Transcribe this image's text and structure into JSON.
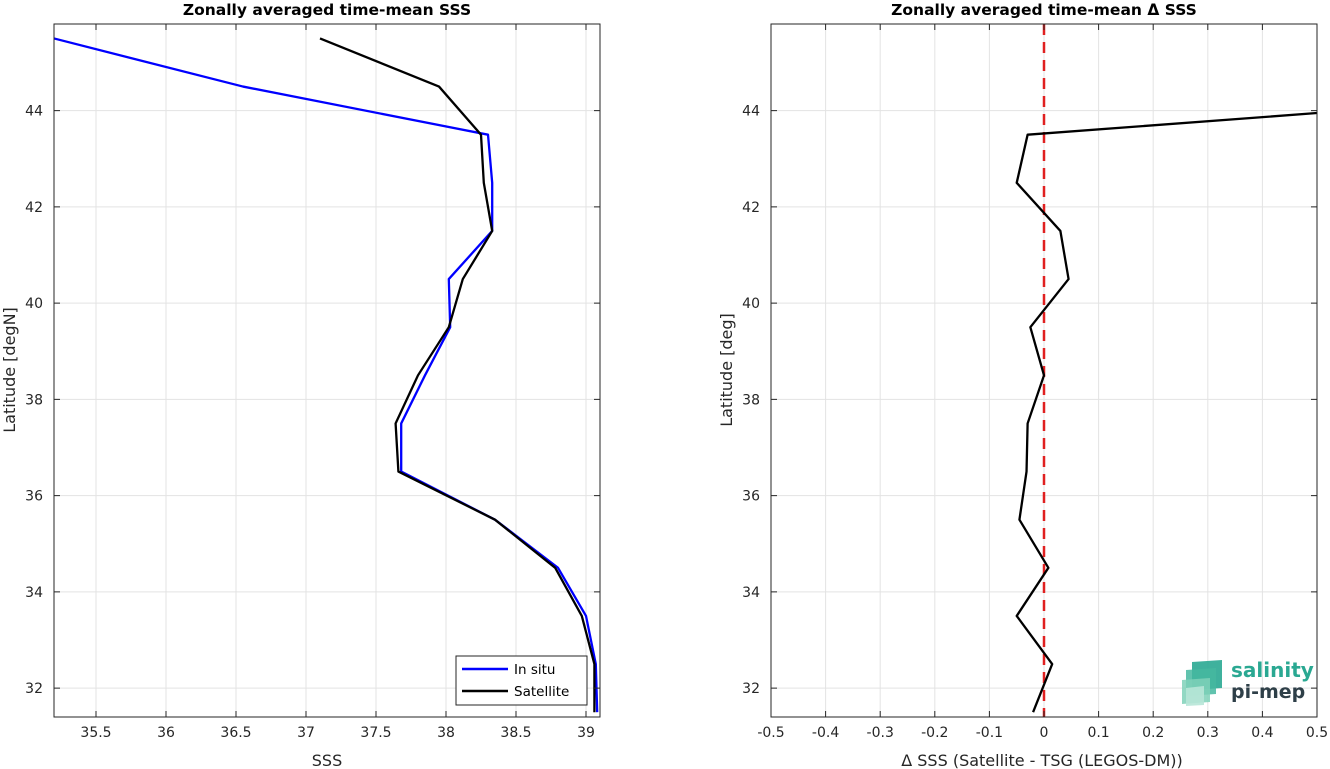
{
  "chart_data": [
    {
      "type": "line",
      "title": "Zonally averaged time-mean SSS",
      "xlabel": "SSS",
      "ylabel": "Latitude [degN]",
      "xlim": [
        35.2,
        39.1
      ],
      "ylim": [
        31.4,
        45.8
      ],
      "xticks": [
        35.5,
        36,
        36.5,
        37,
        37.5,
        38,
        38.5,
        39
      ],
      "xtick_labels": [
        "35.5",
        "36",
        "36.5",
        "37",
        "37.5",
        "38",
        "38.5",
        "39"
      ],
      "yticks": [
        32,
        34,
        36,
        38,
        40,
        42,
        44
      ],
      "ytick_labels": [
        "32",
        "34",
        "36",
        "38",
        "40",
        "42",
        "44"
      ],
      "grid": true,
      "legend_position": "bottom-right",
      "series": [
        {
          "name": "In situ",
          "color": "#0000ff",
          "x": [
            35.2,
            36.55,
            38.3,
            38.33,
            38.33,
            38.02,
            38.03,
            37.85,
            37.68,
            37.68,
            38.35,
            38.8,
            39.0,
            39.07,
            39.08
          ],
          "y": [
            45.5,
            44.5,
            43.5,
            42.5,
            41.5,
            40.5,
            39.5,
            38.5,
            37.5,
            36.5,
            35.5,
            34.5,
            33.5,
            32.5,
            31.5
          ]
        },
        {
          "name": "Satellite",
          "color": "#000000",
          "x": [
            37.1,
            37.95,
            38.25,
            38.27,
            38.33,
            38.12,
            38.02,
            37.8,
            37.64,
            37.66,
            38.35,
            38.78,
            38.97,
            39.06,
            39.06
          ],
          "y": [
            45.5,
            44.5,
            43.5,
            42.5,
            41.5,
            40.5,
            39.5,
            38.5,
            37.5,
            36.5,
            35.5,
            34.5,
            33.5,
            32.5,
            31.5
          ]
        }
      ]
    },
    {
      "type": "line",
      "title": "Zonally averaged time-mean Δ SSS",
      "xlabel": "Δ SSS (Satellite - TSG (LEGOS-DM))",
      "ylabel": "Latitude [deg]",
      "xlim": [
        -0.5,
        0.5
      ],
      "ylim": [
        31.4,
        45.8
      ],
      "xticks": [
        -0.5,
        -0.4,
        -0.3,
        -0.2,
        -0.1,
        0,
        0.1,
        0.2,
        0.3,
        0.4,
        0.5
      ],
      "xtick_labels": [
        "-0.5",
        "-0.4",
        "-0.3",
        "-0.2",
        "-0.1",
        "0",
        "0.1",
        "0.2",
        "0.3",
        "0.4",
        "0.5"
      ],
      "yticks": [
        32,
        34,
        36,
        38,
        40,
        42,
        44
      ],
      "ytick_labels": [
        "32",
        "34",
        "36",
        "38",
        "40",
        "42",
        "44"
      ],
      "grid": true,
      "zero_line_color": "#e02020",
      "series": [
        {
          "color": "#000000",
          "x": [
            0.5,
            -0.03,
            -0.05,
            0.03,
            0.045,
            -0.025,
            0.0,
            -0.03,
            -0.032,
            -0.045,
            0.008,
            -0.05,
            0.015,
            -0.02
          ],
          "y": [
            43.95,
            43.5,
            42.5,
            41.5,
            40.5,
            39.5,
            38.5,
            37.5,
            36.5,
            35.5,
            34.5,
            33.5,
            32.5,
            31.5
          ]
        }
      ]
    }
  ],
  "logo": {
    "line1": "salinity",
    "line2": "pi-mep",
    "colors": [
      "#2aa892",
      "#2e3f48",
      "#7fd1b9"
    ]
  }
}
